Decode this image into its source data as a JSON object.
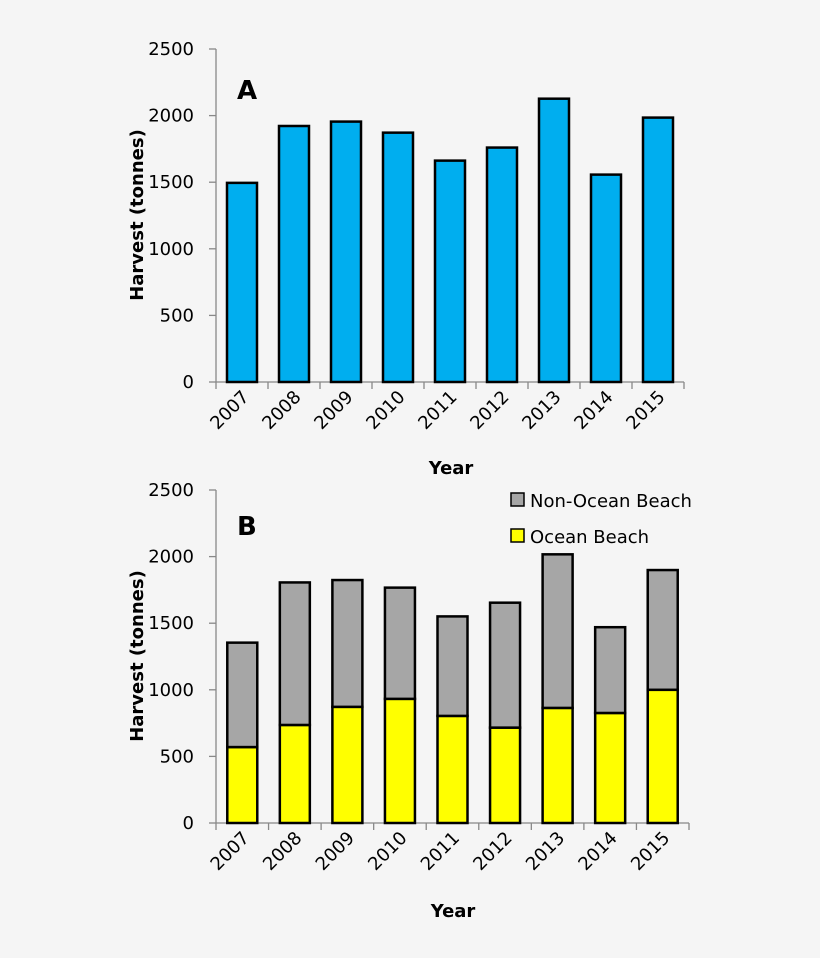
{
  "chart_data": [
    {
      "type": "bar",
      "panel_label": "A",
      "categories": [
        "2007",
        "2008",
        "2009",
        "2010",
        "2011",
        "2012",
        "2013",
        "2014",
        "2015"
      ],
      "values": [
        1495,
        1922,
        1955,
        1872,
        1662,
        1760,
        2127,
        1557,
        1985
      ],
      "xlabel": "Year",
      "ylabel": "Harvest (tonnes)",
      "ylim": [
        0,
        2500
      ],
      "yticks": [
        "0",
        "500",
        "1000",
        "1500",
        "2000",
        "2500"
      ],
      "grid": false,
      "color": "#00aeef"
    },
    {
      "type": "bar",
      "stacked": true,
      "panel_label": "B",
      "categories": [
        "2007",
        "2008",
        "2009",
        "2010",
        "2011",
        "2012",
        "2013",
        "2014",
        "2015"
      ],
      "series": [
        {
          "name": "Ocean Beach",
          "values": [
            570,
            736,
            872,
            932,
            804,
            716,
            864,
            826,
            1000
          ],
          "color": "#ffff00"
        },
        {
          "name": "Non-Ocean Beach",
          "values": [
            784,
            1070,
            952,
            835,
            747,
            938,
            1153,
            644,
            899
          ],
          "color": "#a6a6a6"
        }
      ],
      "xlabel": "Year",
      "ylabel": "Harvest (tonnes)",
      "ylim": [
        0,
        2500
      ],
      "yticks": [
        "0",
        "500",
        "1000",
        "1500",
        "2000",
        "2500"
      ],
      "grid": false,
      "legend_position": "top-right",
      "legend_order": [
        "Non-Ocean Beach",
        "Ocean Beach"
      ]
    }
  ]
}
